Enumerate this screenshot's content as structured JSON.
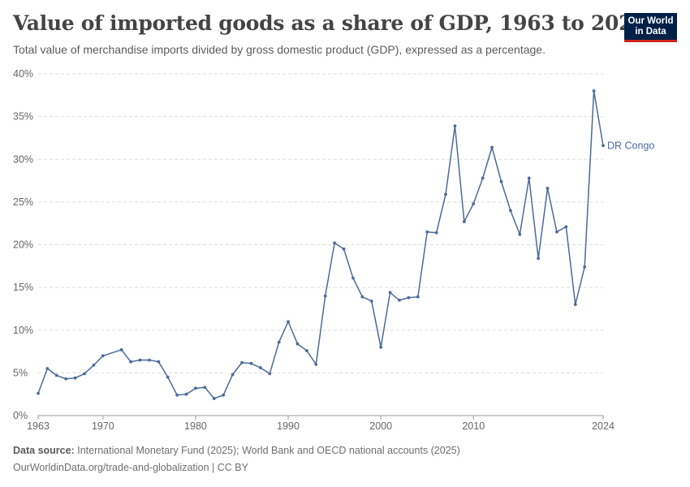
{
  "header": {
    "title": "Value of imported goods as a share of GDP, 1963 to 2024",
    "subtitle": "Total value of merchandise imports divided by gross domestic product (GDP), expressed as a percentage.",
    "logo_line1": "Our World",
    "logo_line2": "in Data"
  },
  "footer": {
    "source_label": "Data source:",
    "source_text": "International Monetary Fund (2025); World Bank and OECD national accounts (2025)",
    "url_text": "OurWorldinData.org/trade-and-globalization | CC BY"
  },
  "colors": {
    "series": "#4c6a9c",
    "grid": "#dddddd",
    "axis": "#666666"
  },
  "chart_data": {
    "type": "line",
    "title": "Value of imported goods as a share of GDP, 1963 to 2024",
    "subtitle": "Total value of merchandise imports divided by gross domestic product (GDP), expressed as a percentage.",
    "xlabel": "",
    "ylabel": "",
    "xlim": [
      1963,
      2024
    ],
    "ylim": [
      0,
      40
    ],
    "grid": "horizontal-dashed",
    "x_ticks": [
      "1963",
      "1970",
      "1980",
      "1990",
      "2000",
      "2010",
      "2024"
    ],
    "y_ticks": [
      "0%",
      "5%",
      "10%",
      "15%",
      "20%",
      "25%",
      "30%",
      "35%",
      "40%"
    ],
    "legend": "inline-end-label",
    "series": [
      {
        "name": "DR Congo",
        "x": [
          1963,
          1964,
          1965,
          1966,
          1967,
          1968,
          1969,
          1970,
          1972,
          1973,
          1974,
          1975,
          1976,
          1977,
          1978,
          1979,
          1980,
          1981,
          1982,
          1983,
          1984,
          1985,
          1986,
          1987,
          1988,
          1989,
          1990,
          1991,
          1992,
          1993,
          1994,
          1995,
          1996,
          1997,
          1998,
          1999,
          2000,
          2001,
          2002,
          2003,
          2004,
          2005,
          2006,
          2007,
          2008,
          2009,
          2010,
          2011,
          2012,
          2013,
          2014,
          2015,
          2016,
          2017,
          2018,
          2019,
          2020,
          2021,
          2022,
          2023,
          2024
        ],
        "values": [
          2.6,
          5.5,
          4.7,
          4.3,
          4.4,
          4.9,
          5.9,
          7.0,
          7.7,
          6.3,
          6.5,
          6.5,
          6.3,
          4.5,
          2.4,
          2.5,
          3.2,
          3.3,
          2.0,
          2.4,
          4.8,
          6.2,
          6.1,
          5.6,
          4.9,
          8.6,
          11.0,
          8.4,
          7.6,
          6.0,
          14.0,
          20.2,
          19.5,
          16.1,
          13.9,
          13.4,
          8.0,
          14.4,
          13.5,
          13.8,
          13.9,
          21.5,
          21.4,
          25.9,
          33.9,
          22.7,
          24.8,
          27.8,
          31.4,
          27.4,
          24.0,
          21.2,
          27.8,
          18.4,
          26.6,
          21.5,
          22.1,
          13.0,
          17.4,
          38.0,
          31.6
        ]
      }
    ]
  }
}
